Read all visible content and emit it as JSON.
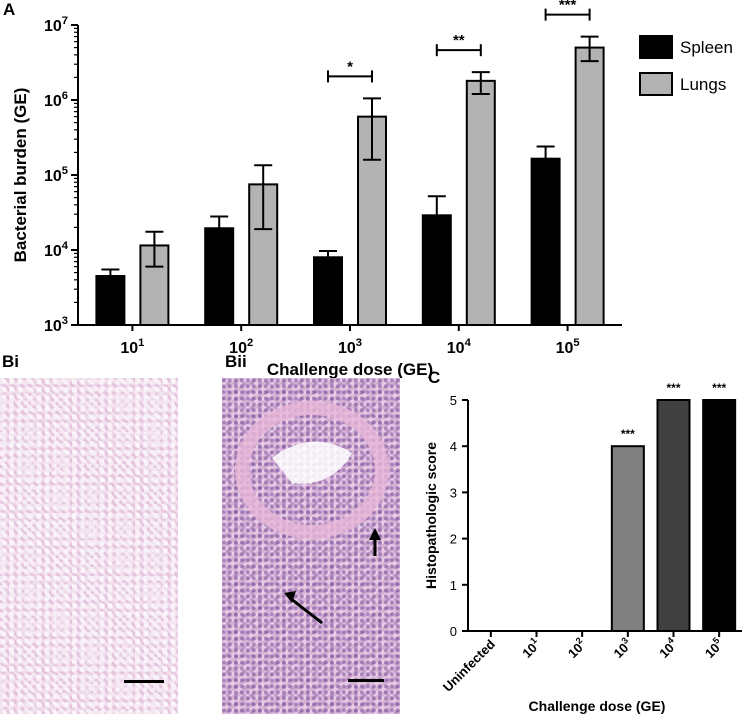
{
  "panels": {
    "a": "A",
    "bi": "Bi",
    "bii": "Bii",
    "c": "C"
  },
  "chart_data": [
    {
      "type": "bar",
      "panel": "A",
      "log_scale": true,
      "ylabel": "Bacterial burden (GE)",
      "xlabel": "Challenge dose (GE)",
      "categories": [
        "10^1",
        "10^2",
        "10^3",
        "10^4",
        "10^5"
      ],
      "category_base": "10",
      "category_exponents": [
        "1",
        "2",
        "3",
        "4",
        "5"
      ],
      "ylim": [
        1000,
        10000000
      ],
      "ytick_exponents": [
        "3",
        "4",
        "5",
        "6",
        "7"
      ],
      "legend_position": "top-right",
      "series": [
        {
          "name": "Spleen",
          "color": "#000000",
          "values": [
            4500,
            19500,
            8000,
            29000,
            165000
          ],
          "errors_low": [
            3500,
            14000,
            6500,
            17000,
            110000
          ],
          "errors_high": [
            5500,
            28000,
            9700,
            52000,
            240000
          ]
        },
        {
          "name": "Lungs",
          "color": "#b3b3b3",
          "values": [
            11500,
            75000,
            600000,
            1800000,
            5000000
          ],
          "errors_low": [
            6000,
            19000,
            160000,
            1200000,
            3300000
          ],
          "errors_high": [
            17500,
            135000,
            1050000,
            2350000,
            7000000
          ]
        }
      ],
      "significance": [
        {
          "category_index": 2,
          "label": "*"
        },
        {
          "category_index": 3,
          "label": "**"
        },
        {
          "category_index": 4,
          "label": "***"
        }
      ]
    },
    {
      "type": "bar",
      "panel": "C",
      "ylabel": "Histopathologic score",
      "xlabel": "Challenge dose (GE)",
      "categories": [
        "Uninfected",
        "10^1",
        "10^2",
        "10^3",
        "10^4",
        "10^5"
      ],
      "category_labels": [
        {
          "base": "Uninfected",
          "exp": ""
        },
        {
          "base": "10",
          "exp": "1"
        },
        {
          "base": "10",
          "exp": "2"
        },
        {
          "base": "10",
          "exp": "3"
        },
        {
          "base": "10",
          "exp": "4"
        },
        {
          "base": "10",
          "exp": "5"
        }
      ],
      "values": [
        0,
        0,
        0,
        4,
        5,
        5
      ],
      "colors": [
        "#ffffff",
        "#ffffff",
        "#ffffff",
        "#808080",
        "#404040",
        "#000000"
      ],
      "ylim": [
        0,
        5
      ],
      "yticks": [
        "0",
        "1",
        "2",
        "3",
        "4",
        "5"
      ],
      "annotations": [
        "",
        "",
        "",
        "***",
        "***",
        "***"
      ]
    }
  ]
}
